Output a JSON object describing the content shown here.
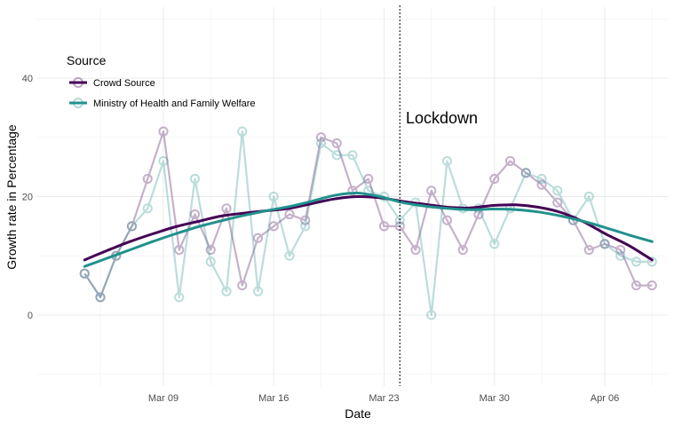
{
  "chart_data": {
    "type": "line",
    "xlabel": "Date",
    "ylabel": "Growth rate in Percentage",
    "xlim": [
      "2020-03-01",
      "2020-04-10"
    ],
    "ylim": [
      -12,
      52
    ],
    "x_ticks": [
      {
        "date": "2020-03-09",
        "label": "Mar 09"
      },
      {
        "date": "2020-03-16",
        "label": "Mar 16"
      },
      {
        "date": "2020-03-23",
        "label": "Mar 23"
      },
      {
        "date": "2020-03-30",
        "label": "Mar 30"
      },
      {
        "date": "2020-04-06",
        "label": "Apr 06"
      }
    ],
    "y_ticks": [
      0,
      20,
      40
    ],
    "grid": true,
    "legend": {
      "title": "Source",
      "position": "top-left",
      "entries": [
        "Crowd Source",
        "Ministry of Health and Family Welfare"
      ]
    },
    "annotation": {
      "text": "Lockdown",
      "date": "2020-03-24"
    },
    "series": [
      {
        "name": "Crowd Source",
        "color": "#440154",
        "dates": [
          "2020-03-04",
          "2020-03-05",
          "2020-03-06",
          "2020-03-07",
          "2020-03-08",
          "2020-03-09",
          "2020-03-10",
          "2020-03-11",
          "2020-03-12",
          "2020-03-13",
          "2020-03-14",
          "2020-03-15",
          "2020-03-16",
          "2020-03-17",
          "2020-03-18",
          "2020-03-19",
          "2020-03-20",
          "2020-03-21",
          "2020-03-22",
          "2020-03-23",
          "2020-03-24",
          "2020-03-25",
          "2020-03-26",
          "2020-03-27",
          "2020-03-28",
          "2020-03-29",
          "2020-03-30",
          "2020-03-31",
          "2020-04-01",
          "2020-04-02",
          "2020-04-03",
          "2020-04-04",
          "2020-04-05",
          "2020-04-06",
          "2020-04-07",
          "2020-04-08",
          "2020-04-09"
        ],
        "values": [
          7,
          3,
          10,
          15,
          23,
          31,
          11,
          17,
          11,
          18,
          5,
          13,
          15,
          17,
          16,
          30,
          29,
          21,
          23,
          15,
          15,
          11,
          21,
          16,
          11,
          17,
          23,
          26,
          24,
          22,
          19,
          16,
          11,
          12,
          11,
          5,
          5
        ],
        "smooth_values": [
          9.3,
          10.9,
          12.4,
          13.7,
          14.9,
          15.8,
          16.7,
          17.2,
          17.6,
          18.0,
          18.8,
          19.6,
          20.0,
          19.8,
          19.2,
          18.7,
          18.2,
          18.1,
          18.5,
          18.6,
          18.2,
          17.3,
          15.7,
          13.6,
          11.7,
          9.3
        ]
      },
      {
        "name": "Ministry of Health and Family Welfare",
        "color": "#21918c",
        "dates": [
          "2020-03-04",
          "2020-03-05",
          "2020-03-06",
          "2020-03-07",
          "2020-03-08",
          "2020-03-09",
          "2020-03-10",
          "2020-03-11",
          "2020-03-12",
          "2020-03-13",
          "2020-03-14",
          "2020-03-15",
          "2020-03-16",
          "2020-03-17",
          "2020-03-18",
          "2020-03-19",
          "2020-03-20",
          "2020-03-21",
          "2020-03-22",
          "2020-03-23",
          "2020-03-24",
          "2020-03-25",
          "2020-03-26",
          "2020-03-27",
          "2020-03-28",
          "2020-03-29",
          "2020-03-30",
          "2020-03-31",
          "2020-04-01",
          "2020-04-02",
          "2020-04-03",
          "2020-04-04",
          "2020-04-05",
          "2020-04-06",
          "2020-04-07",
          "2020-04-08",
          "2020-04-09"
        ],
        "values": [
          7,
          3,
          10,
          15,
          18,
          26,
          3,
          23,
          9,
          4,
          31,
          4,
          20,
          10,
          15,
          29,
          27,
          27,
          21,
          20,
          16,
          19,
          0,
          26,
          18,
          18,
          12,
          18,
          24,
          23,
          21,
          16,
          20,
          12,
          10,
          9,
          9
        ],
        "smooth_values": [
          8.2,
          9.6,
          11.0,
          12.4,
          13.7,
          14.9,
          15.9,
          16.8,
          17.6,
          18.3,
          19.2,
          20.2,
          20.6,
          20.0,
          19.0,
          18.4,
          18.0,
          17.8,
          17.9,
          17.8,
          17.4,
          16.7,
          15.8,
          14.7,
          13.5,
          12.4
        ]
      }
    ]
  }
}
